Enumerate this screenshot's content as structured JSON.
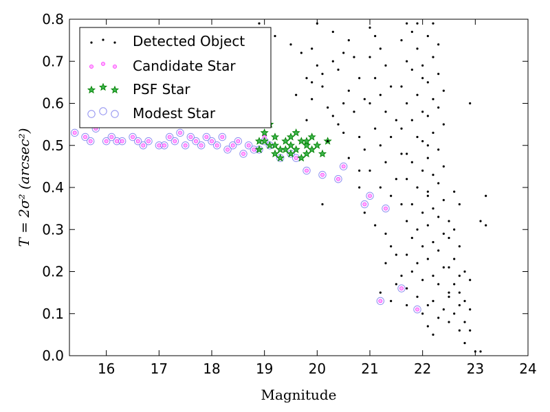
{
  "chart_data": {
    "type": "scatter",
    "xlabel": "Magnitude",
    "ylabel": "T = 2σ² (arcsec²)",
    "xlim": [
      15.3,
      24
    ],
    "ylim": [
      0.0,
      0.8
    ],
    "xticks": [
      "16",
      "17",
      "18",
      "19",
      "20",
      "21",
      "22",
      "23",
      "24"
    ],
    "yticks": [
      "0.0",
      "0.1",
      "0.2",
      "0.3",
      "0.4",
      "0.5",
      "0.6",
      "0.7",
      "0.8"
    ],
    "legend_position": "top-left",
    "grid": false,
    "series": [
      {
        "name": "Detected Object",
        "marker": "dot",
        "color": "#000000",
        "points": [
          [
            18.9,
            0.79
          ],
          [
            19.2,
            0.76
          ],
          [
            19.5,
            0.74
          ],
          [
            19.7,
            0.72
          ],
          [
            19.9,
            0.73
          ],
          [
            20.0,
            0.69
          ],
          [
            19.8,
            0.66
          ],
          [
            20.1,
            0.64
          ],
          [
            19.9,
            0.61
          ],
          [
            20.2,
            0.59
          ],
          [
            20.3,
            0.57
          ],
          [
            19.6,
            0.62
          ],
          [
            20.4,
            0.55
          ],
          [
            20.5,
            0.53
          ],
          [
            20.2,
            0.51
          ],
          [
            19.8,
            0.56
          ],
          [
            20.0,
            0.79
          ],
          [
            20.3,
            0.77
          ],
          [
            20.6,
            0.75
          ],
          [
            20.7,
            0.71
          ],
          [
            20.4,
            0.68
          ],
          [
            20.8,
            0.66
          ],
          [
            20.6,
            0.63
          ],
          [
            20.9,
            0.61
          ],
          [
            20.7,
            0.58
          ],
          [
            20.5,
            0.6
          ],
          [
            20.8,
            0.52
          ],
          [
            20.9,
            0.49
          ],
          [
            20.6,
            0.47
          ],
          [
            20.8,
            0.44
          ],
          [
            20.1,
            0.36
          ],
          [
            21.0,
            0.78
          ],
          [
            21.1,
            0.76
          ],
          [
            21.2,
            0.73
          ],
          [
            21.0,
            0.71
          ],
          [
            21.3,
            0.69
          ],
          [
            21.1,
            0.66
          ],
          [
            21.4,
            0.64
          ],
          [
            21.2,
            0.62
          ],
          [
            21.0,
            0.6
          ],
          [
            21.3,
            0.58
          ],
          [
            21.5,
            0.56
          ],
          [
            21.1,
            0.54
          ],
          [
            21.4,
            0.52
          ],
          [
            21.2,
            0.5
          ],
          [
            21.6,
            0.48
          ],
          [
            21.3,
            0.46
          ],
          [
            21.0,
            0.44
          ],
          [
            21.5,
            0.42
          ],
          [
            21.2,
            0.4
          ],
          [
            21.4,
            0.38
          ],
          [
            21.6,
            0.36
          ],
          [
            21.1,
            0.31
          ],
          [
            21.3,
            0.29
          ],
          [
            21.4,
            0.26
          ],
          [
            21.5,
            0.24
          ],
          [
            21.3,
            0.22
          ],
          [
            21.6,
            0.19
          ],
          [
            21.5,
            0.17
          ],
          [
            21.2,
            0.15
          ],
          [
            21.4,
            0.13
          ],
          [
            21.7,
            0.12
          ],
          [
            21.7,
            0.79
          ],
          [
            21.8,
            0.77
          ],
          [
            21.6,
            0.75
          ],
          [
            21.9,
            0.73
          ],
          [
            21.7,
            0.7
          ],
          [
            21.8,
            0.68
          ],
          [
            22.0,
            0.66
          ],
          [
            21.6,
            0.64
          ],
          [
            21.9,
            0.62
          ],
          [
            21.7,
            0.6
          ],
          [
            22.0,
            0.58
          ],
          [
            21.8,
            0.56
          ],
          [
            21.6,
            0.54
          ],
          [
            21.9,
            0.52
          ],
          [
            22.1,
            0.5
          ],
          [
            21.7,
            0.48
          ],
          [
            21.8,
            0.46
          ],
          [
            22.0,
            0.44
          ],
          [
            21.7,
            0.42
          ],
          [
            21.9,
            0.4
          ],
          [
            22.1,
            0.38
          ],
          [
            21.8,
            0.36
          ],
          [
            22.0,
            0.34
          ],
          [
            21.7,
            0.32
          ],
          [
            21.9,
            0.3
          ],
          [
            21.8,
            0.28
          ],
          [
            22.0,
            0.26
          ],
          [
            21.7,
            0.24
          ],
          [
            21.9,
            0.22
          ],
          [
            21.8,
            0.2
          ],
          [
            22.0,
            0.18
          ],
          [
            21.7,
            0.16
          ],
          [
            21.9,
            0.14
          ],
          [
            22.1,
            0.12
          ],
          [
            22.0,
            0.1
          ],
          [
            22.2,
            0.79
          ],
          [
            22.1,
            0.76
          ],
          [
            22.3,
            0.74
          ],
          [
            22.2,
            0.71
          ],
          [
            22.0,
            0.69
          ],
          [
            22.3,
            0.67
          ],
          [
            22.1,
            0.65
          ],
          [
            22.4,
            0.63
          ],
          [
            22.2,
            0.61
          ],
          [
            22.3,
            0.59
          ],
          [
            22.1,
            0.57
          ],
          [
            22.4,
            0.55
          ],
          [
            22.2,
            0.53
          ],
          [
            22.0,
            0.51
          ],
          [
            22.3,
            0.49
          ],
          [
            22.1,
            0.47
          ],
          [
            22.4,
            0.45
          ],
          [
            22.2,
            0.43
          ],
          [
            22.3,
            0.41
          ],
          [
            22.1,
            0.39
          ],
          [
            22.4,
            0.37
          ],
          [
            22.2,
            0.35
          ],
          [
            22.3,
            0.33
          ],
          [
            22.1,
            0.31
          ],
          [
            22.4,
            0.29
          ],
          [
            22.2,
            0.27
          ],
          [
            22.3,
            0.25
          ],
          [
            22.1,
            0.23
          ],
          [
            22.4,
            0.21
          ],
          [
            22.2,
            0.19
          ],
          [
            22.3,
            0.17
          ],
          [
            22.5,
            0.15
          ],
          [
            22.2,
            0.13
          ],
          [
            22.4,
            0.11
          ],
          [
            22.3,
            0.09
          ],
          [
            22.1,
            0.07
          ],
          [
            22.2,
            0.05
          ],
          [
            22.5,
            0.32
          ],
          [
            22.6,
            0.3
          ],
          [
            22.5,
            0.28
          ],
          [
            22.7,
            0.26
          ],
          [
            22.6,
            0.23
          ],
          [
            22.5,
            0.21
          ],
          [
            22.7,
            0.19
          ],
          [
            22.6,
            0.17
          ],
          [
            22.5,
            0.14
          ],
          [
            22.7,
            0.12
          ],
          [
            22.6,
            0.1
          ],
          [
            22.5,
            0.08
          ],
          [
            22.7,
            0.06
          ],
          [
            22.8,
            0.2
          ],
          [
            22.9,
            0.18
          ],
          [
            22.7,
            0.15
          ],
          [
            22.8,
            0.13
          ],
          [
            22.9,
            0.11
          ],
          [
            22.8,
            0.08
          ],
          [
            22.9,
            0.06
          ],
          [
            22.8,
            0.03
          ],
          [
            23.0,
            0.01
          ],
          [
            23.1,
            0.01
          ],
          [
            23.2,
            0.38
          ],
          [
            23.1,
            0.32
          ],
          [
            23.2,
            0.31
          ],
          [
            22.9,
            0.6
          ],
          [
            22.7,
            0.36
          ],
          [
            22.6,
            0.39
          ],
          [
            20.5,
            0.72
          ],
          [
            20.3,
            0.7
          ],
          [
            20.1,
            0.67
          ],
          [
            19.9,
            0.65
          ],
          [
            21.9,
            0.79
          ],
          [
            20.9,
            0.34
          ],
          [
            20.8,
            0.4
          ]
        ]
      },
      {
        "name": "Candidate Star",
        "marker": "circle",
        "color": "#ff00ff",
        "points": [
          [
            15.4,
            0.53
          ],
          [
            15.6,
            0.52
          ],
          [
            15.7,
            0.51
          ],
          [
            15.8,
            0.54
          ],
          [
            16.0,
            0.51
          ],
          [
            16.1,
            0.52
          ],
          [
            16.2,
            0.51
          ],
          [
            16.3,
            0.51
          ],
          [
            16.5,
            0.52
          ],
          [
            16.6,
            0.51
          ],
          [
            16.7,
            0.5
          ],
          [
            16.8,
            0.51
          ],
          [
            17.0,
            0.5
          ],
          [
            17.1,
            0.5
          ],
          [
            17.2,
            0.52
          ],
          [
            17.3,
            0.51
          ],
          [
            17.4,
            0.53
          ],
          [
            17.5,
            0.5
          ],
          [
            17.6,
            0.52
          ],
          [
            17.7,
            0.51
          ],
          [
            17.8,
            0.5
          ],
          [
            17.9,
            0.52
          ],
          [
            18.0,
            0.51
          ],
          [
            18.1,
            0.5
          ],
          [
            18.2,
            0.52
          ],
          [
            18.3,
            0.49
          ],
          [
            18.4,
            0.5
          ],
          [
            18.5,
            0.51
          ],
          [
            18.6,
            0.48
          ],
          [
            18.7,
            0.5
          ],
          [
            18.8,
            0.49
          ],
          [
            19.0,
            0.52
          ],
          [
            19.6,
            0.47
          ],
          [
            19.8,
            0.44
          ],
          [
            20.1,
            0.43
          ],
          [
            20.4,
            0.42
          ],
          [
            20.5,
            0.45
          ],
          [
            20.9,
            0.36
          ],
          [
            21.0,
            0.38
          ],
          [
            21.3,
            0.35
          ],
          [
            21.2,
            0.13
          ],
          [
            21.6,
            0.16
          ],
          [
            21.9,
            0.11
          ]
        ]
      },
      {
        "name": "PSF Star",
        "marker": "star",
        "color": "#008000",
        "points": [
          [
            18.9,
            0.49
          ],
          [
            19.0,
            0.51
          ],
          [
            19.0,
            0.53
          ],
          [
            19.1,
            0.5
          ],
          [
            19.1,
            0.55
          ],
          [
            19.2,
            0.48
          ],
          [
            19.2,
            0.52
          ],
          [
            19.3,
            0.49
          ],
          [
            19.3,
            0.47
          ],
          [
            19.4,
            0.51
          ],
          [
            19.4,
            0.49
          ],
          [
            19.5,
            0.48
          ],
          [
            19.5,
            0.5
          ],
          [
            19.6,
            0.53
          ],
          [
            19.6,
            0.49
          ],
          [
            19.7,
            0.51
          ],
          [
            19.7,
            0.47
          ],
          [
            19.8,
            0.5
          ],
          [
            19.8,
            0.48
          ],
          [
            19.9,
            0.52
          ],
          [
            19.9,
            0.49
          ],
          [
            20.0,
            0.5
          ],
          [
            20.1,
            0.48
          ],
          [
            20.2,
            0.51
          ],
          [
            18.9,
            0.51
          ],
          [
            19.2,
            0.5
          ],
          [
            19.5,
            0.52
          ],
          [
            19.8,
            0.51
          ]
        ]
      },
      {
        "name": "Modest Star",
        "marker": "open-circle",
        "color": "#8c8cf0",
        "points": [
          [
            15.4,
            0.53
          ],
          [
            15.6,
            0.52
          ],
          [
            15.7,
            0.51
          ],
          [
            15.8,
            0.54
          ],
          [
            16.0,
            0.51
          ],
          [
            16.1,
            0.52
          ],
          [
            16.2,
            0.51
          ],
          [
            16.3,
            0.51
          ],
          [
            16.5,
            0.52
          ],
          [
            16.6,
            0.51
          ],
          [
            16.7,
            0.5
          ],
          [
            16.8,
            0.51
          ],
          [
            17.0,
            0.5
          ],
          [
            17.1,
            0.5
          ],
          [
            17.2,
            0.52
          ],
          [
            17.3,
            0.51
          ],
          [
            17.4,
            0.53
          ],
          [
            17.5,
            0.5
          ],
          [
            17.6,
            0.52
          ],
          [
            17.7,
            0.51
          ],
          [
            17.8,
            0.5
          ],
          [
            17.9,
            0.52
          ],
          [
            18.0,
            0.51
          ],
          [
            18.1,
            0.5
          ],
          [
            18.2,
            0.52
          ],
          [
            18.3,
            0.49
          ],
          [
            18.4,
            0.5
          ],
          [
            18.5,
            0.51
          ],
          [
            18.6,
            0.48
          ],
          [
            18.7,
            0.5
          ],
          [
            18.8,
            0.49
          ],
          [
            18.9,
            0.49
          ],
          [
            19.0,
            0.51
          ],
          [
            19.1,
            0.5
          ],
          [
            19.3,
            0.47
          ],
          [
            19.5,
            0.48
          ],
          [
            19.6,
            0.47
          ],
          [
            19.8,
            0.44
          ],
          [
            20.1,
            0.43
          ],
          [
            20.4,
            0.42
          ],
          [
            20.5,
            0.45
          ],
          [
            20.9,
            0.36
          ],
          [
            21.0,
            0.38
          ],
          [
            21.3,
            0.35
          ],
          [
            21.2,
            0.13
          ],
          [
            21.6,
            0.16
          ],
          [
            21.9,
            0.11
          ]
        ]
      }
    ]
  }
}
